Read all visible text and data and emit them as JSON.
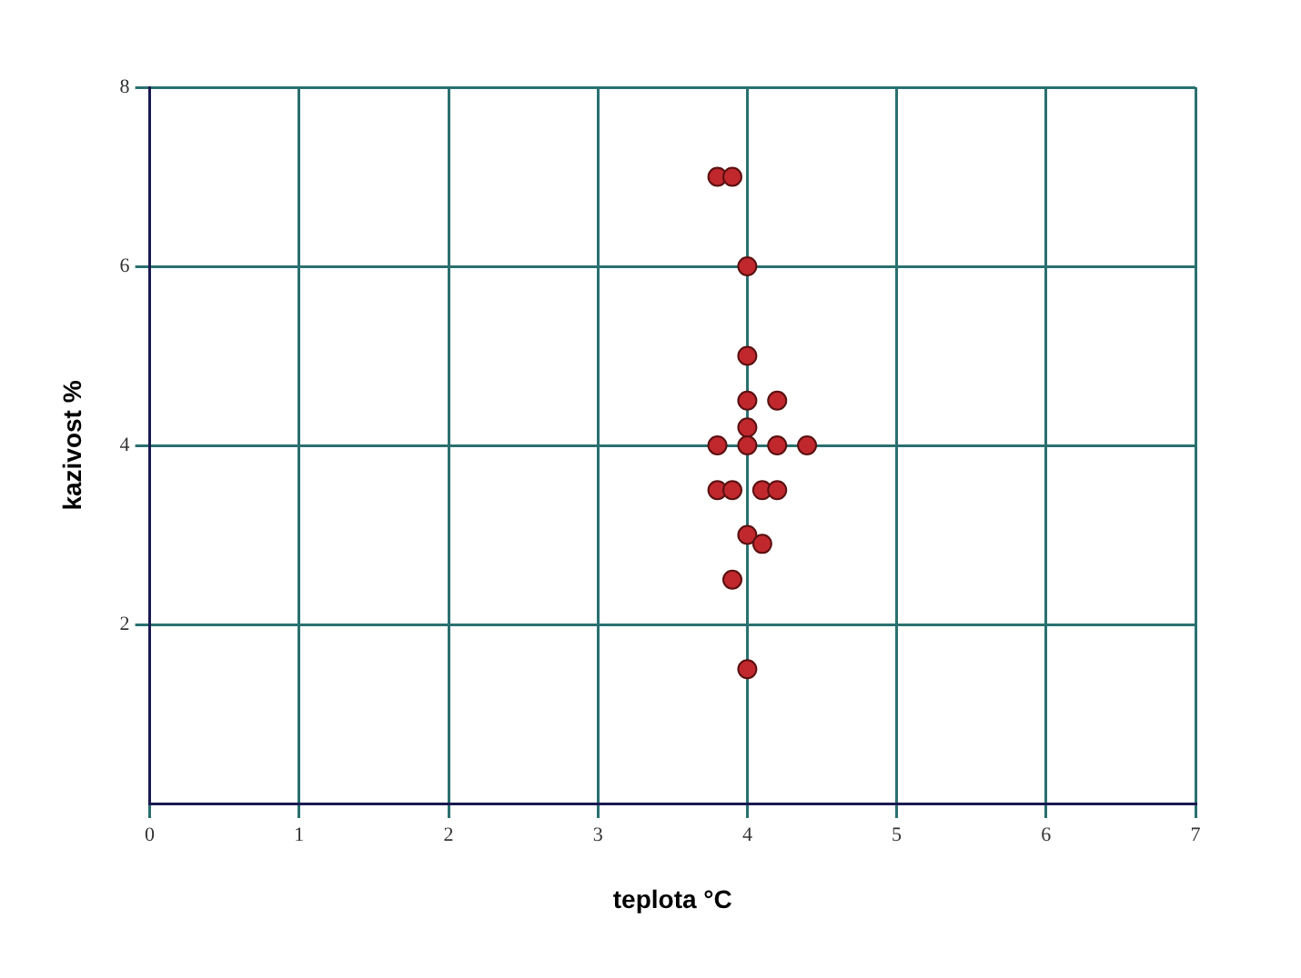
{
  "chart_data": {
    "type": "scatter",
    "xlabel": "teplota °C",
    "ylabel": "kazivost %",
    "x": [
      3.8,
      3.9,
      4,
      4,
      4,
      4.2,
      4,
      3.8,
      4,
      4.2,
      4.4,
      3.8,
      3.9,
      4.1,
      4.2,
      4,
      4.1,
      3.9,
      4
    ],
    "values": [
      7,
      7,
      6,
      5,
      4.5,
      4.5,
      4.2,
      4,
      4,
      4,
      4,
      3.5,
      3.5,
      3.5,
      3.5,
      3,
      2.9,
      2.5,
      1.5
    ],
    "color": "#c0282e",
    "marker": "circle",
    "xlim": [
      0,
      7
    ],
    "xticks": [
      0,
      1,
      2,
      3,
      4,
      5,
      6,
      7
    ],
    "ylim": [
      0,
      8
    ],
    "yticks": [
      2,
      4,
      6,
      8
    ],
    "grid": true,
    "legend": false
  }
}
